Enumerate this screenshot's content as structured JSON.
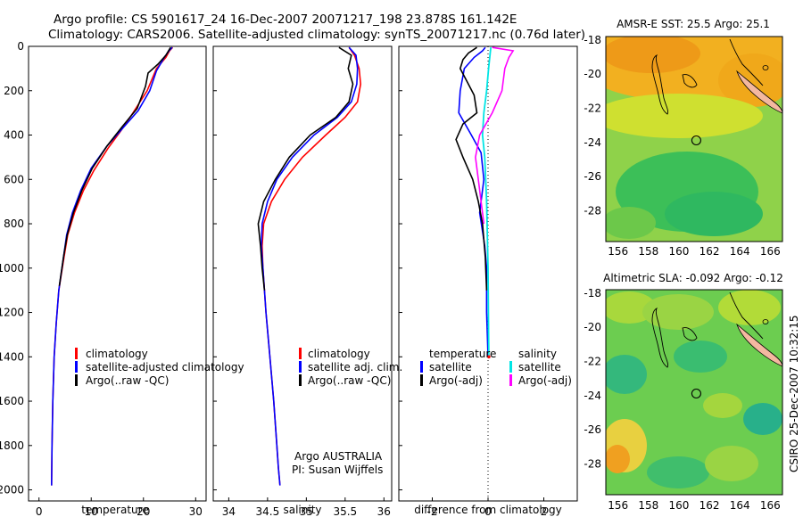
{
  "header": {
    "line1": "Argo profile: CS 5901617_24 16-Dec-2007 20071217_198 23.878S 161.142E",
    "line2": "Climatology: CARS2006. Satellite-adjusted climatology: synTS_20071217.nc (0.76d later)"
  },
  "side_stamp": "CSIRO 25-Dec-2007 10:32:15",
  "colors": {
    "climatology": "#ff0000",
    "satellite": "#0000ff",
    "argo": "#000000",
    "sat_salinity": "#00e5e5",
    "argo_salinity_adj": "#ff00ff",
    "land": "#f4b8a0"
  },
  "chart_data": [
    {
      "type": "line",
      "xlabel": "temperature",
      "xlim": [
        -2,
        32
      ],
      "ylim": [
        0,
        2050
      ],
      "xticks": [
        "0",
        "10",
        "20",
        "30"
      ],
      "xtick_values": [
        0,
        10,
        20,
        30
      ],
      "yticks": [
        "0",
        "200",
        "400",
        "600",
        "800",
        "1000",
        "1200",
        "1400",
        "1600",
        "1800",
        "2000"
      ],
      "ytick_values": [
        0,
        200,
        400,
        600,
        800,
        1000,
        1200,
        1400,
        1600,
        1800,
        2000
      ],
      "legend": [
        "climatology",
        "satellite-adjusted climatology",
        "Argo(..raw -QC)"
      ],
      "series": [
        {
          "name": "climatology",
          "color": "#ff0000",
          "x": [
            25.6,
            25,
            24.3,
            22.5,
            20.7,
            18,
            15.7,
            13.2,
            10.5,
            8.5,
            6.8,
            5.5,
            4.8,
            3.8,
            3.3,
            2.9,
            2.65,
            2.5,
            2.4
          ],
          "y": [
            5,
            20,
            50,
            100,
            200,
            300,
            380,
            460,
            560,
            650,
            750,
            850,
            950,
            1100,
            1250,
            1400,
            1600,
            1800,
            1980
          ]
        },
        {
          "name": "satellite-adjusted climatology",
          "color": "#0000ff",
          "x": [
            25.5,
            24.9,
            24,
            22.5,
            21.2,
            19,
            16,
            13,
            10,
            8,
            6.4,
            5.3,
            4.7,
            3.8,
            3.3,
            2.9,
            2.65,
            2.5,
            2.4
          ],
          "y": [
            5,
            20,
            50,
            110,
            200,
            290,
            370,
            450,
            550,
            650,
            750,
            850,
            950,
            1100,
            1250,
            1400,
            1600,
            1800,
            1980
          ]
        },
        {
          "name": "Argo(..raw -QC)",
          "color": "#000000",
          "x": [
            25.2,
            24.3,
            22.8,
            20.9,
            20.4,
            18.8,
            16,
            13,
            10.2,
            8.2,
            6.6,
            5.4,
            4.7,
            3.9
          ],
          "y": [
            5,
            40,
            80,
            120,
            180,
            280,
            360,
            450,
            550,
            650,
            750,
            850,
            950,
            1080
          ]
        }
      ]
    },
    {
      "type": "line",
      "xlabel": "salinity",
      "xlim": [
        33.8,
        36.1
      ],
      "ylim": [
        0,
        2050
      ],
      "xticks": [
        "34",
        "34.5",
        "35",
        "35.5",
        "36"
      ],
      "xtick_values": [
        34,
        34.5,
        35,
        35.5,
        36
      ],
      "legend": [
        "climatology",
        "satellite adj. clim.",
        "Argo(..raw -QC)"
      ],
      "annotations": [
        "Argo AUSTRALIA",
        "PI: Susan Wijffels"
      ],
      "series": [
        {
          "name": "climatology",
          "color": "#ff0000",
          "x": [
            35.55,
            35.62,
            35.68,
            35.7,
            35.66,
            35.5,
            35.25,
            34.95,
            34.72,
            34.55,
            34.45,
            34.43,
            34.44,
            34.48,
            34.53,
            34.58,
            34.62,
            34.64,
            34.66
          ],
          "y": [
            5,
            40,
            100,
            170,
            250,
            320,
            400,
            500,
            600,
            700,
            800,
            900,
            1000,
            1200,
            1400,
            1600,
            1800,
            1900,
            1980
          ]
        },
        {
          "name": "satellite adj. clim.",
          "color": "#0000ff",
          "x": [
            35.55,
            35.64,
            35.66,
            35.65,
            35.58,
            35.4,
            35.1,
            34.82,
            34.62,
            34.5,
            34.43,
            34.42,
            34.44,
            34.48,
            34.53,
            34.58,
            34.62,
            34.64,
            34.66
          ],
          "y": [
            5,
            40,
            100,
            170,
            250,
            320,
            400,
            500,
            600,
            700,
            800,
            900,
            1000,
            1200,
            1400,
            1600,
            1800,
            1900,
            1980
          ]
        },
        {
          "name": "Argo(..raw -QC)",
          "color": "#000000",
          "x": [
            35.42,
            35.58,
            35.54,
            35.6,
            35.55,
            35.38,
            35.05,
            34.78,
            34.6,
            34.45,
            34.38,
            34.41,
            34.43,
            34.46
          ],
          "y": [
            5,
            40,
            100,
            170,
            250,
            320,
            400,
            500,
            600,
            700,
            800,
            900,
            1000,
            1100
          ]
        }
      ]
    },
    {
      "type": "line",
      "xlabel": "difference from climatology",
      "xlim": [
        -3.2,
        3.2
      ],
      "ylim": [
        0,
        2050
      ],
      "xticks": [
        "-2",
        "0",
        "2"
      ],
      "xtick_values": [
        -2,
        0,
        2
      ],
      "legend": [
        "temperature",
        "satellite",
        "Argo(-adj)",
        "salinity",
        "satellite",
        "Argo(-adj)"
      ],
      "series": [
        {
          "name": "satellite",
          "color": "#0000ff",
          "x": [
            -0.1,
            -0.2,
            -0.5,
            -0.85,
            -1.0,
            -1.05,
            -0.6,
            -0.25,
            -0.15,
            -0.3,
            -0.12,
            -0.05,
            -0.05,
            0
          ],
          "y": [
            5,
            20,
            50,
            100,
            200,
            300,
            400,
            480,
            600,
            750,
            900,
            1000,
            1200,
            1400
          ]
        },
        {
          "name": "Argo(-adj)",
          "color": "#000000",
          "x": [
            -0.4,
            -0.7,
            -0.9,
            -1.0,
            -0.75,
            -0.5,
            -0.4,
            -0.9,
            -1.15,
            -0.9,
            -0.55,
            -0.35,
            -0.2,
            -0.1,
            -0.05
          ],
          "y": [
            5,
            30,
            60,
            100,
            160,
            220,
            300,
            350,
            420,
            500,
            600,
            700,
            800,
            950,
            1100
          ]
        },
        {
          "name": "salinity satellite",
          "color": "#00e5e5",
          "x": [
            0.1,
            0.06,
            0.02,
            -0.05,
            -0.15,
            -0.2,
            -0.12,
            -0.05,
            0,
            0.02,
            0.03
          ],
          "y": [
            5,
            50,
            100,
            200,
            300,
            400,
            500,
            700,
            1000,
            1300,
            1400
          ]
        },
        {
          "name": "salinity Argo(-adj)",
          "color": "#ff00ff",
          "x": [
            0.15,
            0.9,
            0.75,
            0.6,
            0.5,
            0.15,
            -0.3,
            -0.45,
            -0.35,
            -0.25,
            -0.15
          ],
          "y": [
            5,
            20,
            50,
            100,
            200,
            300,
            400,
            500,
            600,
            700,
            800
          ]
        }
      ]
    },
    {
      "type": "heatmap",
      "title": "AMSR-E SST: 25.5 Argo: 25.1",
      "xlim": [
        155.2,
        166.8
      ],
      "ylim": [
        -29.8,
        -17.8
      ],
      "xticks": [
        "156",
        "158",
        "160",
        "162",
        "164",
        "166"
      ],
      "xtick_values": [
        156,
        158,
        160,
        162,
        164,
        166
      ],
      "yticks": [
        "-18",
        "-20",
        "-22",
        "-24",
        "-26",
        "-28"
      ],
      "ytick_values": [
        -18,
        -20,
        -22,
        -24,
        -26,
        -28
      ],
      "argo_location": [
        161.142,
        -23.878
      ]
    },
    {
      "type": "heatmap",
      "title": "Altimetric SLA: -0.092 Argo: -0.12",
      "xlim": [
        155.2,
        166.8
      ],
      "ylim": [
        -29.8,
        -17.8
      ],
      "xticks": [
        "156",
        "158",
        "160",
        "162",
        "164",
        "166"
      ],
      "xtick_values": [
        156,
        158,
        160,
        162,
        164,
        166
      ],
      "yticks": [
        "-18",
        "-20",
        "-22",
        "-24",
        "-26",
        "-28"
      ],
      "ytick_values": [
        -18,
        -20,
        -22,
        -24,
        -26,
        -28
      ],
      "argo_location": [
        161.142,
        -23.878
      ]
    }
  ]
}
